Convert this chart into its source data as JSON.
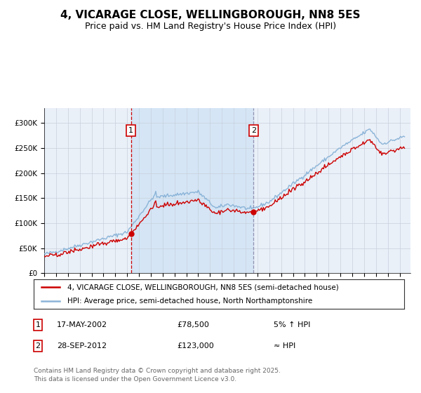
{
  "title1": "4, VICARAGE CLOSE, WELLINGBOROUGH, NN8 5ES",
  "title2": "Price paid vs. HM Land Registry's House Price Index (HPI)",
  "legend1": "4, VICARAGE CLOSE, WELLINGBOROUGH, NN8 5ES (semi-detached house)",
  "legend2": "HPI: Average price, semi-detached house, North Northamptonshire",
  "sale1_date_label": "17-MAY-2002",
  "sale1_price": 78500,
  "sale1_price_label": "£78,500",
  "sale1_pct": "5% ↑ HPI",
  "sale2_date_label": "28-SEP-2012",
  "sale2_price": 123000,
  "sale2_price_label": "£123,000",
  "sale2_pct": "≈ HPI",
  "ylabel_ticks": [
    "£0",
    "£50K",
    "£100K",
    "£150K",
    "£200K",
    "£250K",
    "£300K"
  ],
  "ytick_vals": [
    0,
    50000,
    100000,
    150000,
    200000,
    250000,
    300000
  ],
  "ylim": [
    0,
    330000
  ],
  "background_color": "#ffffff",
  "plot_bg_color": "#eaf0f8",
  "shaded_region_color": "#d5e5f5",
  "grid_color": "#c8d0dc",
  "hpi_line_color": "#8ab4d8",
  "price_line_color": "#cc0000",
  "sale_marker_color": "#cc0000",
  "dashed_line_color1": "#cc0000",
  "dashed_line_color2": "#9090b0",
  "footnote": "Contains HM Land Registry data © Crown copyright and database right 2025.\nThis data is licensed under the Open Government Licence v3.0.",
  "title_fontsize": 11,
  "subtitle_fontsize": 9,
  "tick_fontsize": 7.5,
  "legend_fontsize": 8,
  "annotation_fontsize": 8
}
